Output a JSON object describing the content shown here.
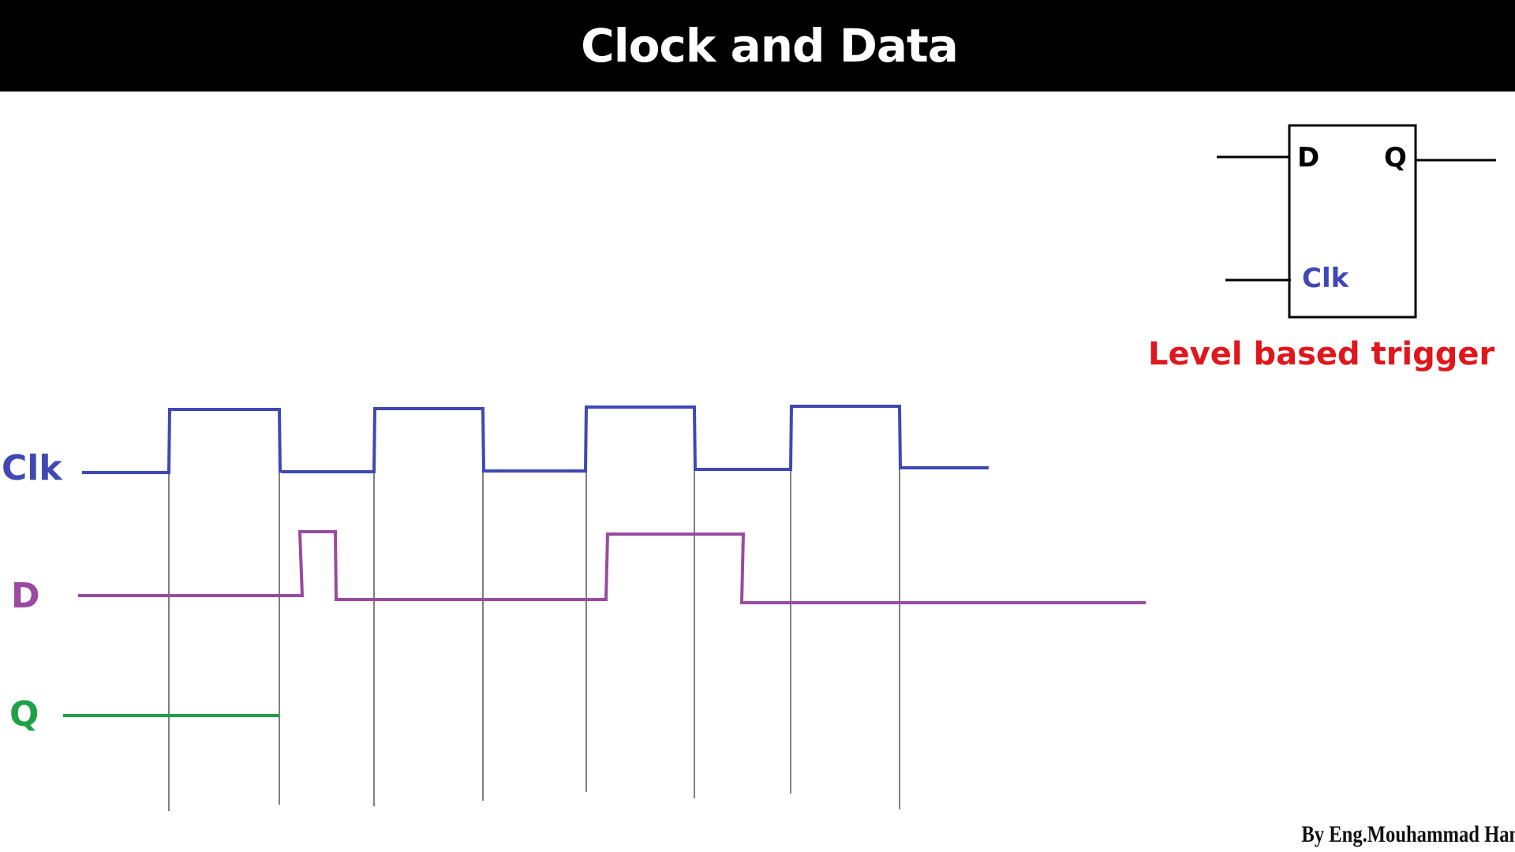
{
  "title": "Clock and Data",
  "signals": [
    {
      "id": "clk",
      "label": "Clk",
      "color": "#3f48b3"
    },
    {
      "id": "d",
      "label": "D",
      "color": "#9a4aa0"
    },
    {
      "id": "q",
      "label": "Q",
      "color": "#21a04a"
    }
  ],
  "flipflop": {
    "input_d": "D",
    "output_q": "Q",
    "input_clk": "Clk",
    "caption": "Level based trigger",
    "caption_color": "#e0161d",
    "clk_color": "#3f48b3"
  },
  "author": "By Eng.Mouhammad Hamsho",
  "colors": {
    "background": "#ffffff",
    "title_bar": "#000000",
    "grid_lines": "#000000"
  }
}
